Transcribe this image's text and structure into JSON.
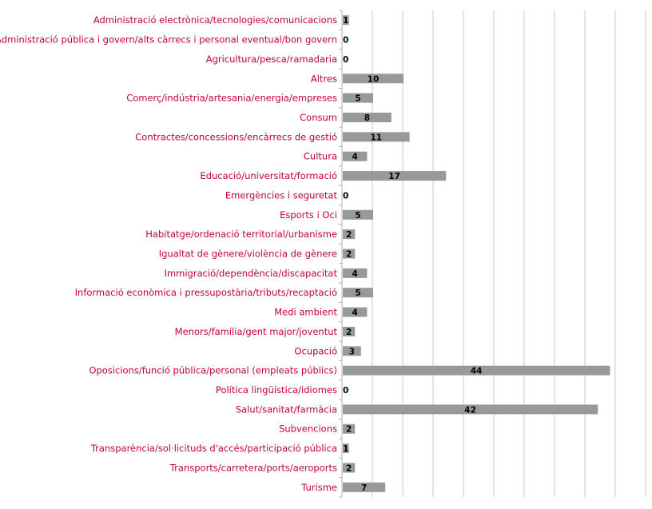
{
  "chart_data": {
    "type": "bar",
    "orientation": "horizontal",
    "title": "",
    "xlabel": "",
    "ylabel": "",
    "xlim": [
      0,
      50
    ],
    "grid": true,
    "colors": {
      "bar": "#999999",
      "label": "#c0003c",
      "grid": "#c8c8c8",
      "value": "#000000"
    },
    "categories": [
      "Administració electrònica/tecnologies/comunicacions",
      "Administració pública i govern/alts càrrecs i personal eventual/bon govern",
      "Agricultura/pesca/ramadaria",
      "Altres",
      "Comerç/indústria/artesania/energia/empreses",
      "Consum",
      "Contractes/concessions/encàrrecs de gestió",
      "Cultura",
      "Educació/universitat/formació",
      "Emergències i seguretat",
      "Esports i Oci",
      "Habitatge/ordenació territorial/urbanisme",
      "Igualtat de gènere/violència de gènere",
      "Immigració/dependència/discapacitat",
      "Informació econòmica i pressupostària/tributs/recaptació",
      "Medi ambient",
      "Menors/família/gent major/joventut",
      "Ocupació",
      "Oposicions/funció pública/personal (empleats públics)",
      "Política lingüística/idiomes",
      "Salut/sanitat/farmàcia",
      "Subvencions",
      "Transparència/sol·licituds d'accés/participació pública",
      "Transports/carretera/ports/aeroports",
      "Turisme"
    ],
    "values": [
      1,
      0,
      0,
      10,
      5,
      8,
      11,
      4,
      17,
      0,
      5,
      2,
      2,
      4,
      5,
      4,
      2,
      3,
      44,
      0,
      42,
      2,
      1,
      2,
      7
    ]
  }
}
